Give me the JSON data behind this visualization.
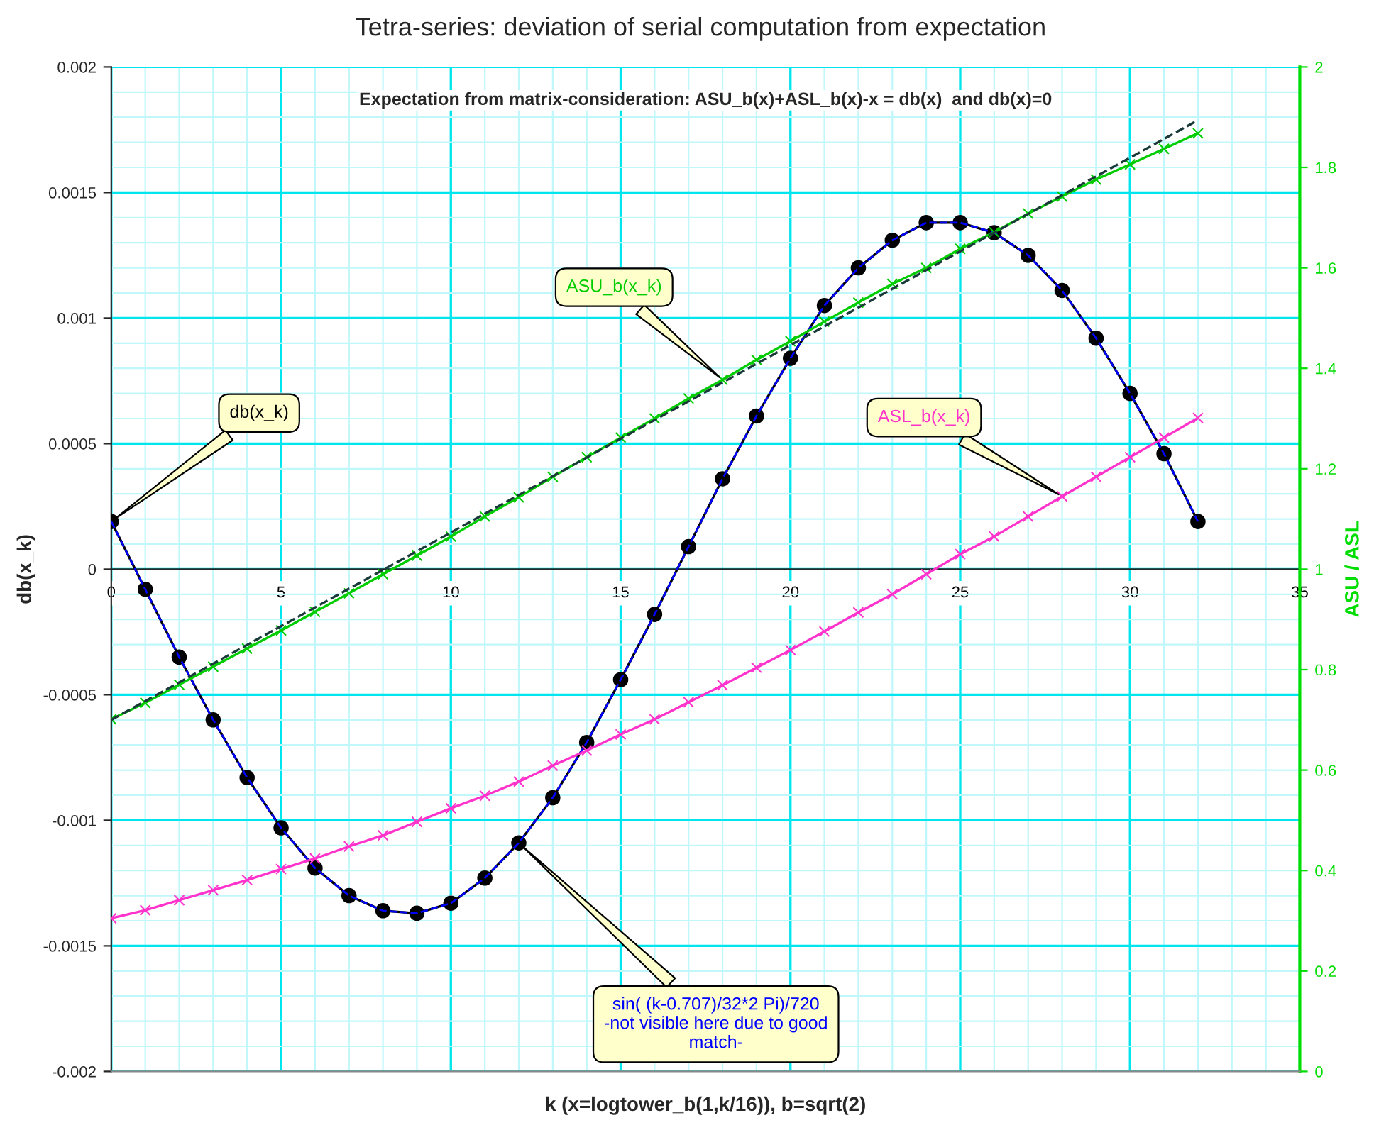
{
  "chart_data": {
    "type": "line",
    "title": "Tetra-series: deviation of serial computation from expectation",
    "subtitle": "Expectation from matrix-consideration: ASU_b(x)+ASL_b(x)-x = db(x)  and db(x)=0",
    "xlabel": "k (x=logtower_b(1,k/16)), b=sqrt(2)",
    "ylabel": "db(x_k)",
    "y2label": "ASU / ASL",
    "x": [
      0,
      1,
      2,
      3,
      4,
      5,
      6,
      7,
      8,
      9,
      10,
      11,
      12,
      13,
      14,
      15,
      16,
      17,
      18,
      19,
      20,
      21,
      22,
      23,
      24,
      25,
      26,
      27,
      28,
      29,
      30,
      31,
      32
    ],
    "series": [
      {
        "name": "db(x_k)",
        "color": "#000000",
        "marker": "circle",
        "line_style": "solid",
        "values": [
          0.00019,
          -8e-05,
          -0.00035,
          -0.0006,
          -0.00083,
          -0.00103,
          -0.00119,
          -0.0013,
          -0.00136,
          -0.00137,
          -0.00133,
          -0.00123,
          -0.00109,
          -0.00091,
          -0.00069,
          -0.00044,
          -0.00018,
          9e-05,
          0.00036,
          0.00061,
          0.00084,
          0.00105,
          0.0012,
          0.00131,
          0.00138,
          0.00138,
          0.00134,
          0.00125,
          0.00111,
          0.00092,
          0.0007,
          0.00046,
          0.00019
        ]
      },
      {
        "name": "sin( (k-0.707)/32*2 Pi)/720\n-not visible here due to good\nmatch-",
        "color": "#0000ff",
        "marker": "none",
        "line_style": "dashed",
        "values": [
          0.00019,
          -8e-05,
          -0.00035,
          -0.0006,
          -0.00083,
          -0.00103,
          -0.00119,
          -0.0013,
          -0.00136,
          -0.00137,
          -0.00133,
          -0.00123,
          -0.00109,
          -0.00091,
          -0.00069,
          -0.00044,
          -0.00018,
          9e-05,
          0.00036,
          0.00061,
          0.00084,
          0.00105,
          0.0012,
          0.00131,
          0.00138,
          0.00138,
          0.00134,
          0.00125,
          0.00111,
          0.00092,
          0.0007,
          0.00046,
          0.00019
        ]
      },
      {
        "name": "ASU_b(x_k)",
        "color": "#00cc00",
        "axis": "y2",
        "marker": "cross",
        "line_style": "solid",
        "values": [
          0.701,
          0.734,
          0.77,
          0.806,
          0.842,
          0.878,
          0.915,
          0.952,
          0.99,
          1.027,
          1.065,
          1.105,
          1.143,
          1.184,
          1.223,
          1.262,
          1.3,
          1.34,
          1.377,
          1.417,
          1.454,
          1.493,
          1.531,
          1.568,
          1.6,
          1.638,
          1.671,
          1.708,
          1.742,
          1.776,
          1.806,
          1.837,
          1.868
        ]
      },
      {
        "name": "ASL_b(x_k)",
        "color": "#ff33cc",
        "axis": "y2",
        "marker": "cross",
        "line_style": "solid",
        "values": [
          0.305,
          0.321,
          0.341,
          0.361,
          0.381,
          0.403,
          0.424,
          0.448,
          0.47,
          0.497,
          0.524,
          0.549,
          0.577,
          0.609,
          0.639,
          0.671,
          0.701,
          0.735,
          0.769,
          0.804,
          0.839,
          0.876,
          0.914,
          0.95,
          0.99,
          1.03,
          1.065,
          1.105,
          1.145,
          1.184,
          1.223,
          1.262,
          1.301
        ]
      },
      {
        "color": "#1a3a3a",
        "axis": "y2",
        "marker": "none",
        "line_style": "dashed",
        "x": [
          0,
          32
        ],
        "values": [
          0.7,
          1.894
        ]
      }
    ],
    "xlim": [
      0,
      35
    ],
    "xticks": [
      0,
      5,
      10,
      15,
      20,
      25,
      30,
      35
    ],
    "ylim": [
      -0.002,
      0.002
    ],
    "yticks": [
      -0.002,
      -0.0015,
      -0.001,
      -0.0005,
      0,
      0.0005,
      0.001,
      0.0015,
      0.002
    ],
    "y2lim": [
      0,
      2
    ],
    "y2ticks": [
      0,
      0.2,
      0.4,
      0.6,
      0.8,
      1,
      1.2,
      1.4,
      1.6,
      1.8,
      2
    ],
    "grid": true,
    "legend": false
  }
}
